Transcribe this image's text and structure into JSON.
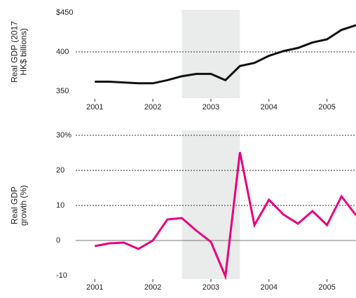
{
  "chart_data": [
    {
      "type": "line",
      "ylabel": [
        "Real GDP (2017",
        "HK$ billions)"
      ],
      "x": [
        2001,
        2001.25,
        2001.5,
        2001.75,
        2002,
        2002.25,
        2002.5,
        2002.75,
        2003,
        2003.25,
        2003.5,
        2003.75,
        2004,
        2004.25,
        2004.5,
        2004.75,
        2005,
        2005.25,
        2005.5
      ],
      "series": [
        {
          "color": "#111111",
          "values": [
            362,
            362,
            361,
            360,
            360,
            364,
            369,
            372,
            372,
            364,
            382,
            386,
            395,
            401,
            405,
            412,
            416,
            428,
            434
          ]
        }
      ],
      "xlim": [
        2000.67,
        2005.5
      ],
      "xticks": [
        2001,
        2002,
        2003,
        2004,
        2005
      ],
      "ylim": [
        350,
        450
      ],
      "yticks": [
        {
          "value": 450,
          "label": "$450"
        },
        400,
        350
      ],
      "grid_lines": [
        400
      ],
      "shaded_range": [
        2002.5,
        2003.5
      ]
    },
    {
      "type": "line",
      "ylabel": [
        "Real GDP",
        "growth (%)"
      ],
      "x": [
        2001,
        2001.25,
        2001.5,
        2001.75,
        2002,
        2002.25,
        2002.5,
        2002.75,
        2003,
        2003.25,
        2003.5,
        2003.75,
        2004,
        2004.25,
        2004.5,
        2004.75,
        2005,
        2005.25,
        2005.5
      ],
      "series": [
        {
          "color": "#e6007e",
          "values": [
            -1.6,
            -0.8,
            -0.6,
            -2.4,
            0,
            6,
            6.4,
            2.8,
            -0.4,
            -10.2,
            25.2,
            4.4,
            11.6,
            7.4,
            4.8,
            8.4,
            4.4,
            12.6,
            7.2
          ]
        }
      ],
      "xlim": [
        2000.67,
        2005.5
      ],
      "xticks": [
        2001,
        2002,
        2003,
        2004,
        2005
      ],
      "ylim": [
        -10,
        30
      ],
      "yticks": [
        {
          "value": 30,
          "label": "30%"
        },
        20,
        10,
        0,
        -10
      ],
      "grid_lines": [
        30,
        20,
        10
      ],
      "zero_line": true,
      "shaded_range": [
        2002.5,
        2003.5
      ]
    }
  ]
}
